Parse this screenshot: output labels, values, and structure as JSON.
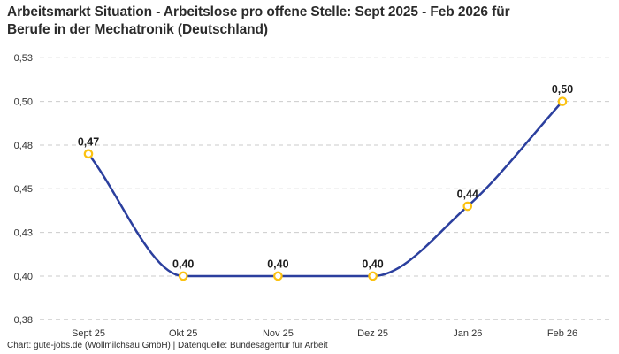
{
  "header": {
    "title_line1": "Arbeitsmarkt Situation - Arbeitslose pro offene Stelle: Sept 2025 - Feb 2026 für",
    "title_line2": "Berufe in der Mechatronik (Deutschland)"
  },
  "footer": {
    "credit": "Chart: gute-jobs.de (Wollmilchsau GmbH) | Datenquelle: Bundesagentur für Arbeit"
  },
  "chart_data": {
    "type": "line",
    "title": "Arbeitsmarkt Situation - Arbeitslose pro offene Stelle: Sept 2025 - Feb 2026 für Berufe in der Mechatronik (Deutschland)",
    "categories": [
      "Sept 25",
      "Okt 25",
      "Nov 25",
      "Dez 25",
      "Jan 26",
      "Feb 26"
    ],
    "series": [
      {
        "name": "Arbeitslose pro offene Stelle",
        "values": [
          0.47,
          0.4,
          0.4,
          0.4,
          0.44,
          0.5
        ]
      }
    ],
    "point_labels": [
      "0,47",
      "0,40",
      "0,40",
      "0,40",
      "0,44",
      "0,50"
    ],
    "ylim": [
      0.375,
      0.525
    ],
    "yticks": [
      {
        "value": 0.525,
        "label": "0,53"
      },
      {
        "value": 0.5,
        "label": "0,50"
      },
      {
        "value": 0.475,
        "label": "0,48"
      },
      {
        "value": 0.45,
        "label": "0,45"
      },
      {
        "value": 0.425,
        "label": "0,43"
      },
      {
        "value": 0.4,
        "label": "0,40"
      },
      {
        "value": 0.375,
        "label": "0,38"
      }
    ],
    "xlabel": "",
    "ylabel": "",
    "legend": "none",
    "grid": "horizontal-dashed",
    "curve": "monotone",
    "colors": {
      "line": "#2b3f9e",
      "marker_ring": "#fcc211",
      "marker_fill": "#ffffff",
      "grid": "#cbcbcb",
      "axis_text": "#333333",
      "label_text": "#1d1d1d"
    }
  }
}
